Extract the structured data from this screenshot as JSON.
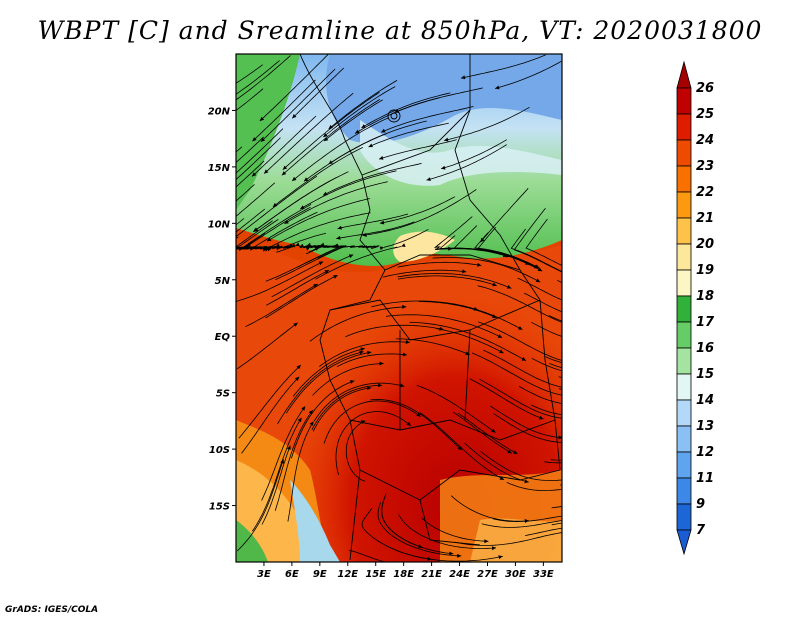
{
  "title": "WBPT [C] and Sreamline at 850hPa, VT: 2020031800",
  "credit": "GrADS: IGES/COLA",
  "map": {
    "lon_range": [
      0,
      35
    ],
    "lat_range": [
      -20,
      25
    ],
    "lat_ticks": [
      {
        "value": 20,
        "label": "20N"
      },
      {
        "value": 15,
        "label": "15N"
      },
      {
        "value": 10,
        "label": "10N"
      },
      {
        "value": 5,
        "label": "5N"
      },
      {
        "value": 0,
        "label": "EQ"
      },
      {
        "value": -5,
        "label": "5S"
      },
      {
        "value": -10,
        "label": "10S"
      },
      {
        "value": -15,
        "label": "15S"
      }
    ],
    "lon_ticks": [
      {
        "value": 3,
        "label": "3E"
      },
      {
        "value": 6,
        "label": "6E"
      },
      {
        "value": 9,
        "label": "9E"
      },
      {
        "value": 12,
        "label": "12E"
      },
      {
        "value": 15,
        "label": "15E"
      },
      {
        "value": 18,
        "label": "18E"
      },
      {
        "value": 21,
        "label": "21E"
      },
      {
        "value": 24,
        "label": "24E"
      },
      {
        "value": 27,
        "label": "27E"
      },
      {
        "value": 30,
        "label": "30E"
      },
      {
        "value": 33,
        "label": "33E"
      }
    ]
  },
  "colorbar": {
    "levels": [
      {
        "label": "26",
        "color": "#a50000"
      },
      {
        "label": "25",
        "color": "#c00000"
      },
      {
        "label": "24",
        "color": "#dd1c00"
      },
      {
        "label": "23",
        "color": "#ee4a00"
      },
      {
        "label": "22",
        "color": "#f87000"
      },
      {
        "label": "21",
        "color": "#fb9a10"
      },
      {
        "label": "20",
        "color": "#fcc24a"
      },
      {
        "label": "19",
        "color": "#fde79a"
      },
      {
        "label": "18",
        "color": "#fcf6c4"
      },
      {
        "label": "17",
        "color": "#31b03a"
      },
      {
        "label": "16",
        "color": "#66cc66"
      },
      {
        "label": "15",
        "color": "#a4e3a0"
      },
      {
        "label": "14",
        "color": "#e2f6f4"
      },
      {
        "label": "13",
        "color": "#b4d8f8"
      },
      {
        "label": "12",
        "color": "#8ac0f4"
      },
      {
        "label": "11",
        "color": "#5fa4ee"
      },
      {
        "label": "9",
        "color": "#3d88e6"
      },
      {
        "label": "7",
        "color": "#1d66d6"
      }
    ],
    "bottom_color": "#1a5cd2"
  }
}
